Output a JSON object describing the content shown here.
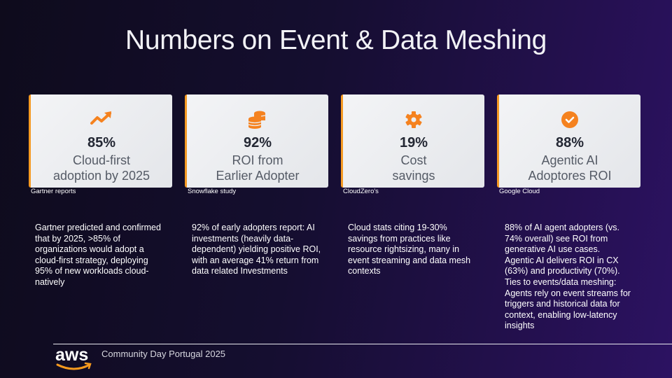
{
  "title": "Numbers on Event & Data Meshing",
  "cards": [
    {
      "icon": "trending-up-icon",
      "value": "85%",
      "label1": "Cloud-first",
      "label2": "adoption by 2025",
      "source": "Gartner reports",
      "body": "Gartner predicted and confirmed that by 2025, >85% of organizations would adopt a cloud-first strategy, deploying 95% of new workloads cloud-natively"
    },
    {
      "icon": "coins-icon",
      "value": "92%",
      "label1": "ROI from",
      "label2": "Earlier Adopter",
      "source": "Snowflake study",
      "body": "92% of early adopters report: AI investments (heavily data-dependent) yielding positive ROI, with an average 41% return from data related Investments"
    },
    {
      "icon": "gear-icon",
      "value": "19%",
      "label1": "Cost",
      "label2": "savings",
      "source": "CloudZero's",
      "body": "Cloud stats citing 19-30% savings from practices like resource rightsizing, many in event streaming and data mesh contexts"
    },
    {
      "icon": "check-circle-icon",
      "value": "88%",
      "label1": "Agentic AI",
      "label2": "Adoptores ROI",
      "source": "Google Cloud",
      "body": "88% of AI agent adopters (vs. 74% overall) see ROI from generative AI use cases. Agentic AI delivers ROI in CX (63%) and productivity (70%). Ties to events/data meshing: Agents rely on event streams for triggers and historical data for context, enabling low-latency insights"
    }
  ],
  "footer": {
    "logo": "aws",
    "text": "Community Day Portugal 2025"
  },
  "colors": {
    "accent": "#f5821f",
    "border": "#f59a23"
  }
}
